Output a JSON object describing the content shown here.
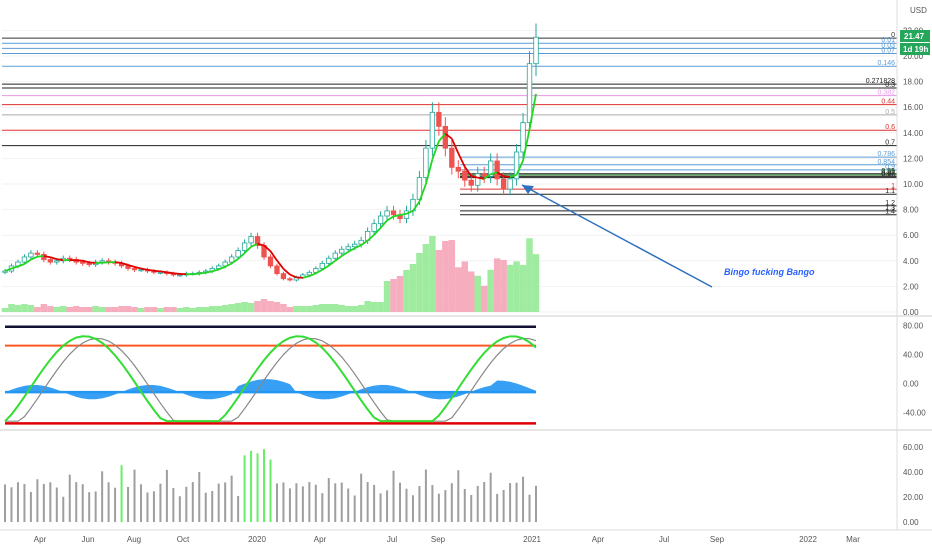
{
  "currency": "USD",
  "price_badge": "21.47",
  "countdown_badge": "1d 19h",
  "annotation": "Bingo fucking Bango",
  "colors": {
    "up": "#26a69a",
    "down": "#ef5350",
    "ma_up": "#21d621",
    "ma_down": "#e00000",
    "vol_up": "#8ee88e",
    "vol_down": "#f4a0b4",
    "osc_area": "#2196f3",
    "osc_fast": "#33dd33",
    "osc_slow": "#888888",
    "hist_up": "#66ee66",
    "hist": "#9e9e9e",
    "arrow": "#2e6fbf"
  },
  "chart_data": [
    {
      "type": "candlestick",
      "title": "",
      "x_ticks": [
        "Apr",
        "Jun",
        "Aug",
        "Oct",
        "2020",
        "Apr",
        "Jul",
        "Sep",
        "2021",
        "Apr",
        "Jul",
        "Sep",
        "2022",
        "Mar"
      ],
      "y_ticks": [
        "0.00",
        "2.00",
        "4.00",
        "6.00",
        "8.00",
        "10.00",
        "12.00",
        "14.00",
        "16.00",
        "18.00",
        "20.00",
        "22.00"
      ],
      "ylim": [
        0,
        22.5
      ],
      "close_series_weekly": [
        3.2,
        3.6,
        3.9,
        4.3,
        4.6,
        4.5,
        4.1,
        3.9,
        4.0,
        4.2,
        4.1,
        3.9,
        3.8,
        3.7,
        3.9,
        4.0,
        3.9,
        3.8,
        3.6,
        3.4,
        3.3,
        3.3,
        3.2,
        3.1,
        3.1,
        3.0,
        2.9,
        2.9,
        3.0,
        3.0,
        3.1,
        3.2,
        3.4,
        3.6,
        3.9,
        4.3,
        4.8,
        5.4,
        5.9,
        5.2,
        4.3,
        3.6,
        3.0,
        2.6,
        2.5,
        2.7,
        2.9,
        3.1,
        3.4,
        3.8,
        4.2,
        4.6,
        4.9,
        5.1,
        5.3,
        5.6,
        6.3,
        6.9,
        7.5,
        7.9,
        7.6,
        7.3,
        7.9,
        8.8,
        10.5,
        12.8,
        15.6,
        14.5,
        12.8,
        11.3,
        11.0,
        10.3,
        9.9,
        10.8,
        10.6,
        11.8,
        10.4,
        9.6,
        10.4,
        12.5,
        14.8,
        19.4,
        21.47
      ],
      "fib_levels": [
        {
          "label": "0",
          "value": 21.4,
          "color": "#333333"
        },
        {
          "label": "0.01",
          "value": 21.0,
          "color": "#5b9bd5"
        },
        {
          "label": "0.03",
          "value": 20.6,
          "color": "#5b9bd5"
        },
        {
          "label": "0.07",
          "value": 20.2,
          "color": "#5b9bd5"
        },
        {
          "label": "0.146",
          "value": 19.2,
          "color": "#5b9bd5"
        },
        {
          "label": "0.271828",
          "value": 17.8,
          "color": "#222222"
        },
        {
          "label": "0.3",
          "value": 17.5,
          "color": "#222222"
        },
        {
          "label": "0.382",
          "value": 16.9,
          "color": "#e896e8"
        },
        {
          "label": "0.44",
          "value": 16.2,
          "color": "#e03030"
        },
        {
          "label": "0.5",
          "value": 15.4,
          "color": "#aaaaaa"
        },
        {
          "label": "0.6",
          "value": 14.2,
          "color": "#e03030"
        },
        {
          "label": "0.7",
          "value": 13.0,
          "color": "#222222"
        },
        {
          "label": "0.786",
          "value": 12.1,
          "color": "#5b9bd5"
        },
        {
          "label": "0.854",
          "value": 11.5,
          "color": "#5b9bd5"
        },
        {
          "label": "0.9",
          "value": 11.1,
          "color": "#5b9bd5"
        },
        {
          "label": "0.95",
          "value": 10.8,
          "color": "#222222"
        },
        {
          "label": "0.96",
          "value": 10.7,
          "color": "#2e8b2e"
        },
        {
          "label": "0.97",
          "value": 10.6,
          "color": "#222222"
        },
        {
          "label": "0.98",
          "value": 10.5,
          "color": "#222222"
        },
        {
          "label": "1",
          "value": 9.6,
          "color": "#e03030"
        },
        {
          "label": "1.1",
          "value": 9.2,
          "color": "#222222"
        },
        {
          "label": "1.2",
          "value": 8.3,
          "color": "#222222"
        },
        {
          "label": "1.3",
          "value": 7.9,
          "color": "#222222"
        },
        {
          "label": "1.4",
          "value": 7.6,
          "color": "#222222"
        }
      ]
    },
    {
      "type": "area",
      "title": "",
      "y_ticks": [
        "80.00",
        "40.00",
        "0.00",
        "-40.00"
      ],
      "ylim": [
        -60,
        90
      ],
      "upper_band": 78,
      "mid_band": 52,
      "lower_band": -55,
      "zero_line": -12
    },
    {
      "type": "bar",
      "title": "",
      "y_ticks": [
        "60.00",
        "40.00",
        "20.00",
        "0.00"
      ],
      "ylim": [
        -4,
        72
      ]
    }
  ]
}
